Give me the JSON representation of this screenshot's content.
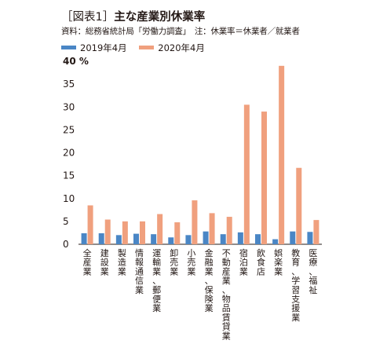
{
  "header": {
    "title_bracket": "［図表1］",
    "title_main": "主な産業別休業率",
    "source": "資料：総務省統計局「労働力調査」　注：休業率＝休業者／就業者"
  },
  "colors": {
    "series_2019": "#4a86c5",
    "series_2020": "#f0a07e",
    "axis": "#231815"
  },
  "chart_data": {
    "type": "bar",
    "title": "主な産業別休業率",
    "ylabel": "%",
    "ylim": [
      0,
      40
    ],
    "yticks": [
      0,
      5,
      10,
      15,
      20,
      25,
      30,
      35,
      40
    ],
    "y_top_label": "40 %",
    "grid": false,
    "legend_position": "top-left",
    "categories": [
      "全産業",
      "建設業",
      "製造業",
      "情報通信業",
      "運輸業、郵便業",
      "卸売業",
      "小売業",
      "金融業、保険業",
      "不動産業、物品賃貸業",
      "宿泊業",
      "飲食店",
      "娯楽業",
      "教育、学習支援業",
      "医療、福祉"
    ],
    "series": [
      {
        "name": "2019年4月",
        "values": [
          2.4,
          2.4,
          2.0,
          2.3,
          2.2,
          1.5,
          2.0,
          2.8,
          2.2,
          2.6,
          2.2,
          1.1,
          2.8,
          2.7
        ]
      },
      {
        "name": "2020年4月",
        "values": [
          8.5,
          5.4,
          5.0,
          5.0,
          6.6,
          4.8,
          9.6,
          6.8,
          6.0,
          30.5,
          29.0,
          39.0,
          16.7,
          5.3
        ]
      }
    ]
  }
}
